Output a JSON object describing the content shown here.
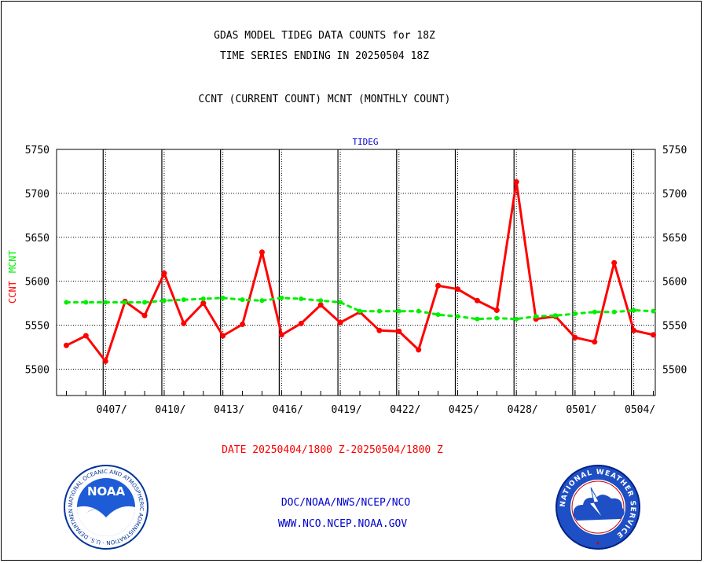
{
  "header": {
    "title_line1": "GDAS MODEL TIDEG DATA COUNTS for 18Z",
    "title_line2": "TIME SERIES ENDING IN 20250504 18Z",
    "subtitle": "CCNT (CURRENT COUNT) MCNT (MONTHLY COUNT)"
  },
  "footer": {
    "date_range": "DATE 20250404/1800 Z-20250504/1800 Z",
    "org_path": "DOC/NOAA/NWS/NCEP/NCO",
    "website": "WWW.NCO.NCEP.NOAA.GOV"
  },
  "logos": {
    "noaa_text": "NOAA",
    "noaa_ring_text": "NATIONAL OCEANIC AND ATMOSPHERIC ADMINISTRATION · U.S. DEPARTMENT OF COMMERCE ·",
    "nws_ring_text": "NATIONAL WEATHER SERVICE"
  },
  "colors": {
    "ccnt": "#ff0000",
    "mcnt": "#00ee00",
    "header_text": "#000000",
    "footer_date": "#ff0000",
    "footer_links": "#0000cc",
    "series_label": "#0000cc"
  },
  "chart_data": {
    "type": "line",
    "panel_label": "TIDEG",
    "ylabel_ccnt": "CCNT",
    "ylabel_mcnt": "MCNT",
    "ylim": [
      5470,
      5750
    ],
    "yticks": [
      5500,
      5550,
      5600,
      5650,
      5700,
      5750
    ],
    "xlim": [
      -0.5,
      30.1
    ],
    "xticks": [
      {
        "x": 2,
        "label": "0407/"
      },
      {
        "x": 5,
        "label": "0410/"
      },
      {
        "x": 8,
        "label": "0413/"
      },
      {
        "x": 11,
        "label": "0416/"
      },
      {
        "x": 14,
        "label": "0419/"
      },
      {
        "x": 17,
        "label": "0422/"
      },
      {
        "x": 20,
        "label": "0425/"
      },
      {
        "x": 23,
        "label": "0428/"
      },
      {
        "x": 26,
        "label": "0501/"
      },
      {
        "x": 29,
        "label": "0504/"
      }
    ],
    "x": [
      0,
      1,
      2,
      3,
      4,
      5,
      6,
      7,
      8,
      9,
      10,
      11,
      12,
      13,
      14,
      15,
      16,
      17,
      18,
      19,
      20,
      21,
      22,
      23,
      24,
      25,
      26,
      27,
      28,
      29,
      30
    ],
    "series": [
      {
        "name": "CCNT",
        "color": "#ff0000",
        "values": [
          5527,
          5538,
          5509,
          5577,
          5561,
          5609,
          5552,
          5575,
          5538,
          5551,
          5633,
          5539,
          5552,
          5573,
          5553,
          5565,
          5544,
          5543,
          5522,
          5595,
          5591,
          5578,
          5567,
          5713,
          5557,
          5560,
          5536,
          5531,
          5621,
          5544,
          5539
        ]
      },
      {
        "name": "MCNT",
        "color": "#00ee00",
        "values": [
          5576,
          5576,
          5576,
          5576,
          5576,
          5578,
          5579,
          5580,
          5581,
          5579,
          5578,
          5581,
          5580,
          5578,
          5576,
          5566,
          5566,
          5566,
          5566,
          5562,
          5560,
          5557,
          5558,
          5557,
          5560,
          5561,
          5563,
          5565,
          5565,
          5567,
          5566
        ]
      }
    ]
  }
}
